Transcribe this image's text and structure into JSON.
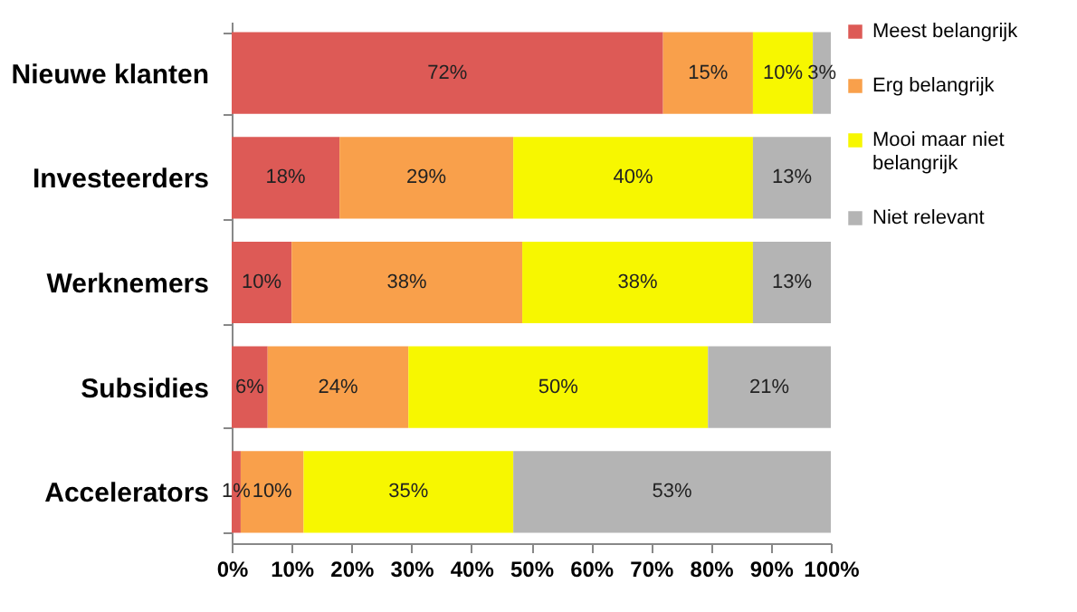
{
  "chart_data": {
    "type": "bar",
    "orientation": "horizontal",
    "stacked": true,
    "categories": [
      "Nieuwe klanten",
      "Investeerders",
      "Werknemers",
      "Subsidies",
      "Accelerators"
    ],
    "series": [
      {
        "name": "Meest belangrijk",
        "color": "#dd5a56",
        "values": [
          72,
          18,
          10,
          6,
          1.5
        ],
        "value_labels": [
          "72%",
          "18%",
          "10%",
          "6%",
          "1%"
        ]
      },
      {
        "name": "Erg belangrijk",
        "color": "#f9a04b",
        "values": [
          15,
          29,
          38.5,
          23.5,
          10.5
        ],
        "value_labels": [
          "15%",
          "29%",
          "38%",
          "24%",
          "10%"
        ]
      },
      {
        "name": "Mooi maar niet belangrijk",
        "color": "#f7f700",
        "values": [
          10,
          40,
          38.5,
          50,
          35
        ],
        "value_labels": [
          "10%",
          "40%",
          "38%",
          "50%",
          "35%"
        ]
      },
      {
        "name": "Niet relevant",
        "color": "#b4b4b4",
        "values": [
          3,
          13,
          13,
          20.5,
          53
        ],
        "value_labels": [
          "3%",
          "13%",
          "13%",
          "21%",
          "53%"
        ]
      }
    ],
    "xlim": [
      0,
      100
    ],
    "xticks": [
      {
        "value": 0,
        "label": "0%"
      },
      {
        "value": 10,
        "label": "10%"
      },
      {
        "value": 20,
        "label": "20%"
      },
      {
        "value": 30,
        "label": "30%"
      },
      {
        "value": 40,
        "label": "40%"
      },
      {
        "value": 50,
        "label": "50%"
      },
      {
        "value": 60,
        "label": "60%"
      },
      {
        "value": 70,
        "label": "70%"
      },
      {
        "value": 80,
        "label": "80%"
      },
      {
        "value": 90,
        "label": "90%"
      },
      {
        "value": 100,
        "label": "100%"
      }
    ],
    "legend": "right"
  }
}
